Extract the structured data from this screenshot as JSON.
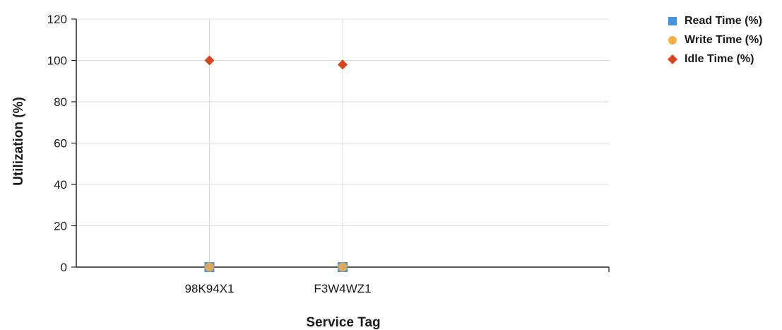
{
  "chart_data": {
    "type": "scatter",
    "categories": [
      "98K94X1",
      "F3W4WZ1"
    ],
    "xlabel": "Service Tag",
    "ylabel": "Utilization (%)",
    "ylim": [
      0,
      120
    ],
    "yticks": [
      0,
      20,
      40,
      60,
      80,
      100,
      120
    ],
    "grid": true,
    "legend_position": "top-right",
    "series": [
      {
        "name": "Read Time (%)",
        "values": [
          0,
          0
        ],
        "color": "#4a90e2",
        "marker": "square"
      },
      {
        "name": "Write Time (%)",
        "values": [
          0,
          0
        ],
        "color": "#f5b041",
        "marker": "circle"
      },
      {
        "name": "Idle Time (%)",
        "values": [
          100,
          98
        ],
        "color": "#d9441c",
        "marker": "diamond"
      }
    ]
  }
}
